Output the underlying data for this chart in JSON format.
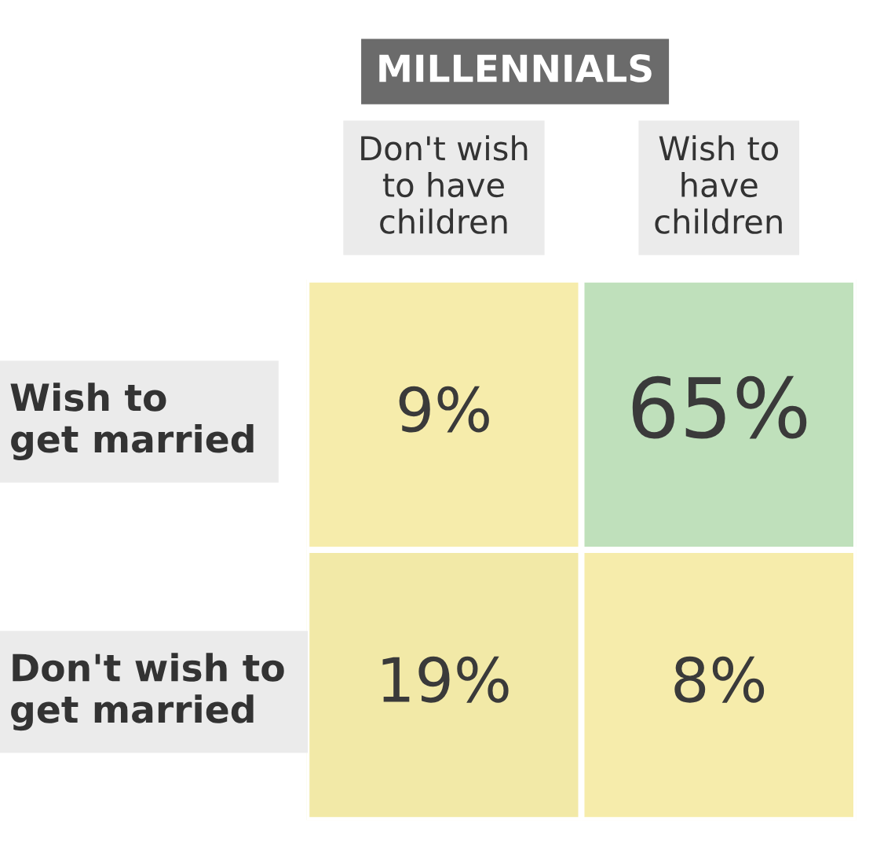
{
  "chart_data": {
    "type": "heatmap",
    "title": "MILLENNIALS",
    "categories": [
      "Don't wish\nto have\nchildren",
      "Wish to\nhave\nchildren"
    ],
    "y_categories": [
      "Wish to\nget married",
      "Don't wish to\nget married"
    ],
    "cells": [
      [
        9,
        65
      ],
      [
        19,
        8
      ]
    ],
    "cell_labels": [
      [
        "9%",
        "65%"
      ],
      [
        "19%",
        "8%"
      ]
    ]
  }
}
